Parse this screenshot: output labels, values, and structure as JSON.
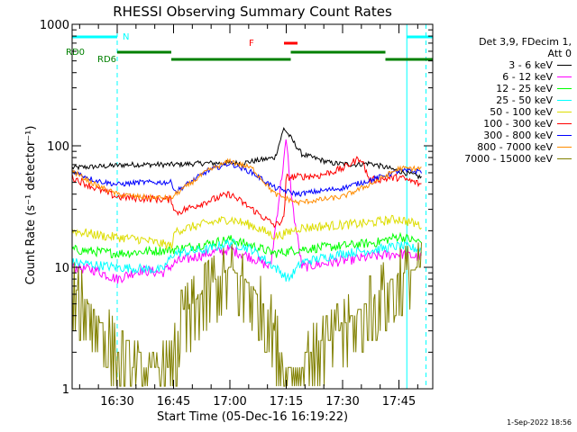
{
  "chart_data": {
    "type": "line",
    "title": "RHESSI Observing Summary Count Rates",
    "xlabel": "Start Time (05-Dec-16 16:19:22)",
    "ylabel": "Count Rate (s⁻¹ detector⁻¹)",
    "yscale": "log",
    "ylim": [
      1,
      1000
    ],
    "xlim_minutes": [
      16.3,
      17.9
    ],
    "y_ticks": [
      "1",
      "10",
      "100",
      "1000"
    ],
    "x_ticks": [
      {
        "t": 16.5,
        "label": "16:30"
      },
      {
        "t": 16.75,
        "label": "16:45"
      },
      {
        "t": 17.0,
        "label": "17:00"
      },
      {
        "t": 17.25,
        "label": "17:15"
      },
      {
        "t": 17.5,
        "label": "17:30"
      },
      {
        "t": 17.75,
        "label": "17:45"
      }
    ],
    "legend_header": [
      "Det 3,9, FDecim 1,",
      "Att 0"
    ],
    "series": [
      {
        "name": "3 - 6 keV",
        "color": "#000000",
        "points": [
          [
            16.3,
            66
          ],
          [
            16.45,
            68
          ],
          [
            16.55,
            70
          ],
          [
            16.75,
            70
          ],
          [
            16.9,
            72
          ],
          [
            17.05,
            72
          ],
          [
            17.2,
            80
          ],
          [
            17.24,
            140
          ],
          [
            17.32,
            85
          ],
          [
            17.45,
            72
          ],
          [
            17.55,
            70
          ],
          [
            17.62,
            72
          ],
          [
            17.75,
            62
          ],
          [
            17.85,
            55
          ]
        ]
      },
      {
        "name": "6 - 12 keV",
        "color": "#ff00ff",
        "points": [
          [
            16.3,
            10
          ],
          [
            16.4,
            9.5
          ],
          [
            16.5,
            8
          ],
          [
            16.6,
            9.5
          ],
          [
            16.7,
            9
          ],
          [
            16.76,
            11
          ],
          [
            16.9,
            13
          ],
          [
            17.0,
            14
          ],
          [
            17.1,
            12
          ],
          [
            17.18,
            10
          ],
          [
            17.22,
            40
          ],
          [
            17.25,
            110
          ],
          [
            17.28,
            30
          ],
          [
            17.32,
            10
          ],
          [
            17.45,
            11
          ],
          [
            17.6,
            12
          ],
          [
            17.75,
            13
          ],
          [
            17.85,
            12
          ]
        ]
      },
      {
        "name": "12 - 25 keV",
        "color": "#00ff00",
        "points": [
          [
            16.3,
            14
          ],
          [
            16.5,
            13
          ],
          [
            16.75,
            14
          ],
          [
            16.85,
            15
          ],
          [
            17.0,
            17
          ],
          [
            17.1,
            15
          ],
          [
            17.2,
            13
          ],
          [
            17.3,
            14
          ],
          [
            17.5,
            15
          ],
          [
            17.65,
            16
          ],
          [
            17.75,
            18
          ],
          [
            17.85,
            16
          ]
        ]
      },
      {
        "name": "25 - 50 keV",
        "color": "#00ffff",
        "points": [
          [
            16.3,
            11
          ],
          [
            16.5,
            10
          ],
          [
            16.7,
            9.5
          ],
          [
            16.75,
            13
          ],
          [
            16.9,
            14
          ],
          [
            17.0,
            16
          ],
          [
            17.1,
            14
          ],
          [
            17.2,
            10
          ],
          [
            17.26,
            8
          ],
          [
            17.32,
            11
          ],
          [
            17.5,
            13
          ],
          [
            17.65,
            14
          ],
          [
            17.75,
            15
          ],
          [
            17.85,
            14
          ]
        ]
      },
      {
        "name": "50 - 100 keV",
        "color": "#dddd00",
        "points": [
          [
            16.3,
            20
          ],
          [
            16.45,
            18
          ],
          [
            16.6,
            17
          ],
          [
            16.74,
            15
          ],
          [
            16.76,
            20
          ],
          [
            16.9,
            23
          ],
          [
            17.0,
            25
          ],
          [
            17.1,
            22
          ],
          [
            17.2,
            18
          ],
          [
            17.25,
            19
          ],
          [
            17.3,
            21
          ],
          [
            17.45,
            22
          ],
          [
            17.6,
            23
          ],
          [
            17.75,
            25
          ],
          [
            17.85,
            22
          ]
        ]
      },
      {
        "name": "100 - 300 keV",
        "color": "#ff0000",
        "points": [
          [
            16.3,
            55
          ],
          [
            16.4,
            45
          ],
          [
            16.5,
            38
          ],
          [
            16.6,
            37
          ],
          [
            16.74,
            36
          ],
          [
            16.76,
            28
          ],
          [
            16.9,
            35
          ],
          [
            17.0,
            40
          ],
          [
            17.1,
            30
          ],
          [
            17.2,
            22
          ],
          [
            17.24,
            25
          ],
          [
            17.25,
            55
          ],
          [
            17.4,
            57
          ],
          [
            17.5,
            65
          ],
          [
            17.58,
            80
          ],
          [
            17.62,
            52
          ],
          [
            17.75,
            55
          ],
          [
            17.85,
            48
          ]
        ]
      },
      {
        "name": "300 - 800 keV",
        "color": "#0000ff",
        "points": [
          [
            16.3,
            62
          ],
          [
            16.4,
            52
          ],
          [
            16.5,
            48
          ],
          [
            16.6,
            50
          ],
          [
            16.74,
            50
          ],
          [
            16.76,
            42
          ],
          [
            16.9,
            62
          ],
          [
            17.0,
            72
          ],
          [
            17.1,
            60
          ],
          [
            17.2,
            45
          ],
          [
            17.3,
            40
          ],
          [
            17.5,
            45
          ],
          [
            17.62,
            52
          ],
          [
            17.75,
            62
          ],
          [
            17.85,
            62
          ]
        ]
      },
      {
        "name": "800 - 7000 keV",
        "color": "#ff8c00",
        "points": [
          [
            16.3,
            62
          ],
          [
            16.4,
            48
          ],
          [
            16.5,
            40
          ],
          [
            16.6,
            38
          ],
          [
            16.74,
            37
          ],
          [
            16.76,
            40
          ],
          [
            16.9,
            62
          ],
          [
            17.0,
            75
          ],
          [
            17.1,
            65
          ],
          [
            17.2,
            40
          ],
          [
            17.3,
            34
          ],
          [
            17.5,
            38
          ],
          [
            17.62,
            48
          ],
          [
            17.75,
            65
          ],
          [
            17.85,
            65
          ]
        ]
      },
      {
        "name": "7000 - 15000 keV",
        "color": "#808000",
        "points": [
          [
            16.3,
            7
          ],
          [
            16.38,
            5
          ],
          [
            16.45,
            3
          ],
          [
            16.55,
            1.5
          ],
          [
            16.65,
            1.3
          ],
          [
            16.74,
            1.5
          ],
          [
            16.78,
            4
          ],
          [
            16.9,
            7
          ],
          [
            17.0,
            10
          ],
          [
            17.1,
            7
          ],
          [
            17.18,
            4
          ],
          [
            17.24,
            1.5
          ],
          [
            17.3,
            1.6
          ],
          [
            17.42,
            2.5
          ],
          [
            17.55,
            4
          ],
          [
            17.65,
            6
          ],
          [
            17.75,
            9
          ],
          [
            17.85,
            10
          ]
        ]
      }
    ],
    "status_bars": [
      {
        "label": "N",
        "color": "#00ffff",
        "segments": [
          [
            16.3,
            16.5
          ],
          [
            17.785,
            17.9
          ]
        ]
      },
      {
        "label": "F",
        "color": "#ff0000",
        "segments": [
          [
            17.24,
            17.3
          ]
        ]
      },
      {
        "label": "RD0",
        "color": "#008000",
        "segments": [
          [
            16.5,
            16.74
          ],
          [
            17.27,
            17.69
          ]
        ]
      },
      {
        "label": "RD6",
        "color": "#008000",
        "segments": [
          [
            16.74,
            17.27
          ],
          [
            17.69,
            17.9
          ]
        ]
      }
    ],
    "vlines": [
      {
        "t": 16.3,
        "style": "solid"
      },
      {
        "t": 16.5,
        "style": "dashed"
      },
      {
        "t": 17.785,
        "style": "solid"
      },
      {
        "t": 17.87,
        "style": "dashed"
      }
    ],
    "legend_position": "right"
  },
  "timestamp": "1-Sep-2022 18:56"
}
